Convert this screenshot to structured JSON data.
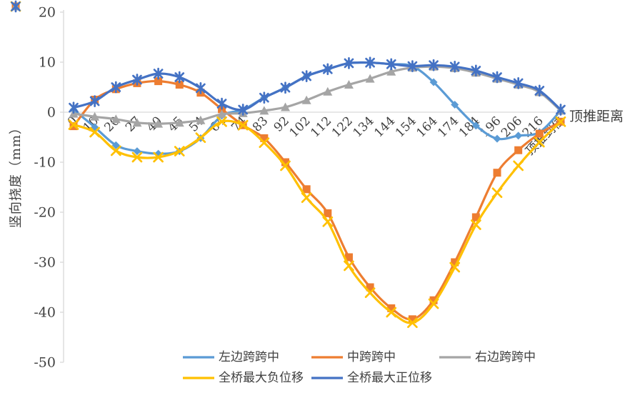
{
  "chart_data": {
    "type": "line",
    "title": "",
    "xlabel": "顶推距离",
    "ylabel": "竖向挠度（mm）",
    "ylim": [
      -50,
      20
    ],
    "yticks": [
      20,
      10,
      0,
      -10,
      -20,
      -30,
      -40,
      -50
    ],
    "grid": "zero-line-only",
    "legend_position": "bottom",
    "axis_color": "#D9D9D9",
    "text_color": "#404040",
    "categories": [
      "0",
      "10",
      "20",
      "27",
      "40",
      "45",
      "54",
      "64",
      "74",
      "83",
      "92",
      "102",
      "112",
      "122",
      "134",
      "144",
      "154",
      "164",
      "174",
      "184",
      "196",
      "206",
      "216",
      "顶推到位"
    ],
    "series": [
      {
        "name": "左边跨跨中",
        "marker": "diamond",
        "color": "#5B9BD5",
        "values": [
          0.5,
          -3.0,
          -6.6,
          -7.8,
          -8.3,
          -7.8,
          -5.2,
          -0.7,
          0.5,
          2.9,
          4.9,
          7.2,
          8.6,
          9.8,
          9.9,
          9.6,
          9.2,
          6.0,
          1.5,
          -2.7,
          -5.3,
          -4.7,
          -4.0,
          0.3
        ]
      },
      {
        "name": "中跨跨中",
        "marker": "square",
        "color": "#ED7D31",
        "values": [
          -2.8,
          2.5,
          4.6,
          5.8,
          6.2,
          5.5,
          3.9,
          0.6,
          -2.6,
          -5.2,
          -10.0,
          -15.4,
          -20.2,
          -29.0,
          -35.0,
          -39.2,
          -41.4,
          -37.6,
          -30.0,
          -21.0,
          -12.1,
          -7.6,
          -4.3,
          -1.9
        ]
      },
      {
        "name": "右边跨跨中",
        "marker": "triangle",
        "color": "#A5A5A5",
        "values": [
          -0.3,
          -0.9,
          -1.4,
          -2.1,
          -2.3,
          -2.1,
          -1.6,
          -0.4,
          -0.2,
          0.3,
          1.0,
          2.4,
          4.1,
          5.5,
          6.7,
          8.1,
          8.9,
          9.1,
          8.8,
          7.9,
          6.7,
          5.5,
          4.0,
          0.3
        ]
      },
      {
        "name": "全桥最大负位移",
        "marker": "x",
        "color": "#FFC000",
        "values": [
          -2.5,
          -4.0,
          -7.7,
          -9.0,
          -9.0,
          -7.8,
          -5.1,
          -1.9,
          -2.6,
          -6.1,
          -10.7,
          -17.1,
          -21.9,
          -30.7,
          -36.1,
          -40.0,
          -42.1,
          -38.3,
          -31.0,
          -22.5,
          -16.1,
          -10.7,
          -6.0,
          -1.9
        ]
      },
      {
        "name": "全桥最大正位移",
        "marker": "star",
        "color": "#4472C4",
        "values": [
          0.9,
          2.2,
          5.0,
          6.5,
          7.7,
          7.0,
          4.8,
          1.7,
          0.5,
          2.9,
          4.9,
          7.2,
          8.6,
          9.8,
          9.9,
          9.6,
          9.2,
          9.4,
          9.1,
          8.3,
          7.0,
          5.8,
          4.3,
          0.5
        ]
      }
    ]
  }
}
